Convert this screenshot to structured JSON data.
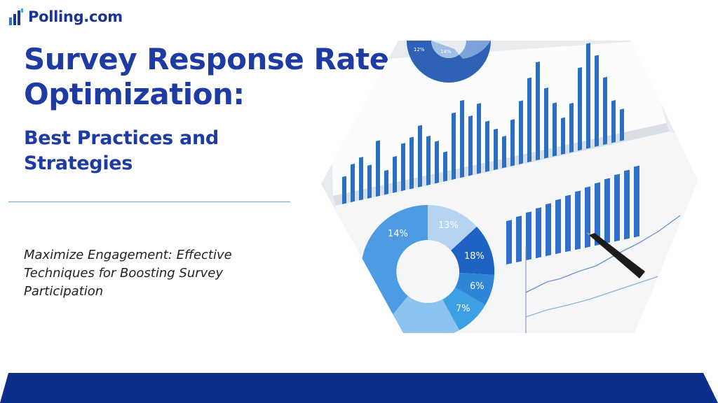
{
  "brand": {
    "name": "Polling.com",
    "logo_icon": "bar-chart-icon",
    "color": "#1b3494"
  },
  "title": {
    "line1": "Survey Response Rate",
    "line2": "Optimization:"
  },
  "subtitle": {
    "line1": "Best Practices and",
    "line2": "Strategies"
  },
  "tagline": {
    "line1": "Maximize Engagement: Effective",
    "line2": "Techniques for Boosting Survey",
    "line3": "Participation"
  },
  "hero_image": {
    "description_icon": "charts-photo",
    "donut_labels": [
      "14%",
      "13%",
      "18%",
      "6%",
      "7%"
    ],
    "top_donut_labels": [
      "12%",
      "14%"
    ]
  },
  "colors": {
    "primary": "#1e3aa3",
    "footer": "#0d2f8c",
    "divider": "#5aa7d6",
    "chart_blue": "#2b6fc1"
  }
}
